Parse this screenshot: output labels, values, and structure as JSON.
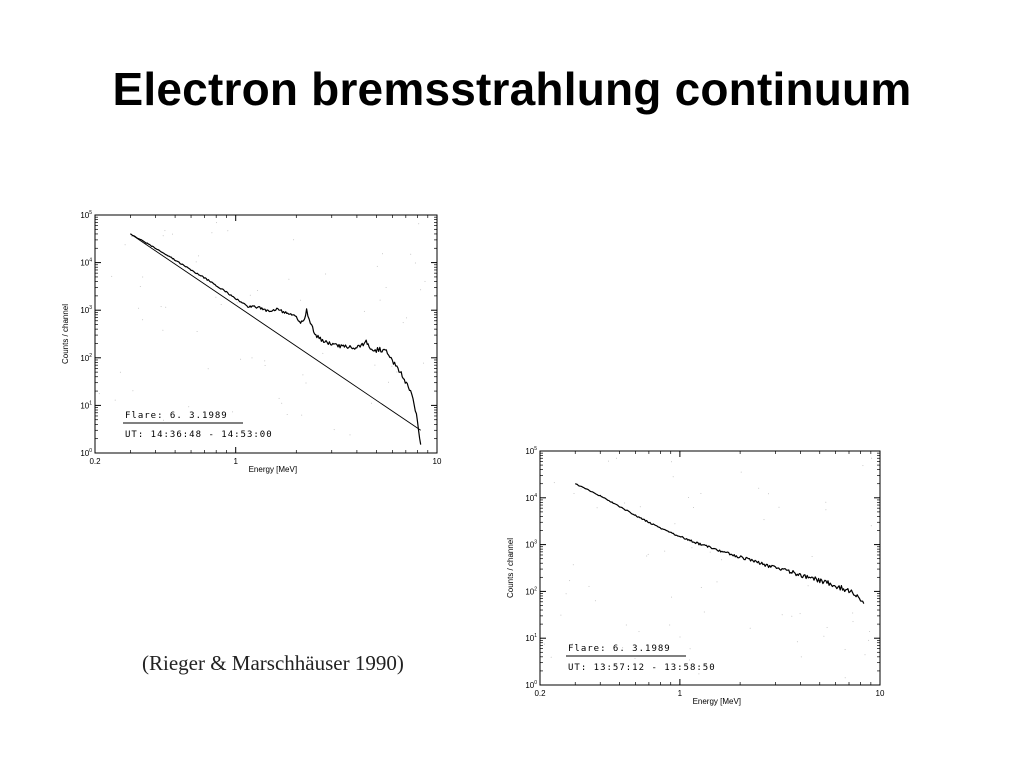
{
  "slide": {
    "title": "Electron bremsstrahlung continuum",
    "citation": "(Rieger & Marschhäuser 1990)"
  },
  "chart_data": [
    {
      "type": "line",
      "title": "",
      "xlabel": "Energy [MeV]",
      "ylabel": "Counts / channel",
      "xscale": "log",
      "yscale": "log",
      "xlim": [
        0.2,
        10
      ],
      "ylim": [
        1,
        100000
      ],
      "x_ticks": [
        "0.2",
        "1",
        "10"
      ],
      "y_ticks": [
        {
          "base": "10",
          "exp": "0",
          "value": 1
        },
        {
          "base": "10",
          "exp": "1",
          "value": 10
        },
        {
          "base": "10",
          "exp": "2",
          "value": 100
        },
        {
          "base": "10",
          "exp": "3",
          "value": 1000
        },
        {
          "base": "10",
          "exp": "4",
          "value": 10000
        },
        {
          "base": "10",
          "exp": "5",
          "value": 100000
        }
      ],
      "annotation": {
        "line1": "Flare: 6. 3.1989",
        "line2": "UT: 14:36:48 - 14:53:00"
      },
      "series": [
        {
          "style": "noisy",
          "x": [
            0.3,
            0.45,
            0.6,
            0.75,
            0.9,
            1.05,
            1.15,
            1.3,
            1.45,
            1.6,
            1.75,
            1.9,
            2.0,
            2.1,
            2.2,
            2.25,
            2.35,
            2.5,
            2.7,
            3.0,
            3.3,
            3.6,
            3.9,
            4.2,
            4.45,
            4.6,
            4.8,
            5.2,
            5.6,
            6.0,
            6.4,
            6.8,
            7.2,
            7.6,
            8.0,
            8.3
          ],
          "y": [
            40000,
            15000,
            7000,
            4000,
            2400,
            1550,
            1200,
            1150,
            950,
            1050,
            900,
            800,
            720,
            560,
            620,
            1000,
            520,
            300,
            230,
            190,
            175,
            170,
            165,
            175,
            240,
            170,
            140,
            150,
            135,
            90,
            55,
            40,
            25,
            15,
            5,
            1.5
          ]
        },
        {
          "style": "smooth",
          "x": [
            0.3,
            8.3
          ],
          "y": [
            40000,
            3
          ]
        }
      ]
    },
    {
      "type": "line",
      "title": "",
      "xlabel": "Energy [MeV]",
      "ylabel": "Counts / channel",
      "xscale": "log",
      "yscale": "log",
      "xlim": [
        0.2,
        10
      ],
      "ylim": [
        1,
        100000
      ],
      "x_ticks": [
        "0.2",
        "1",
        "10"
      ],
      "y_ticks": [
        {
          "base": "10",
          "exp": "0",
          "value": 1
        },
        {
          "base": "10",
          "exp": "1",
          "value": 10
        },
        {
          "base": "10",
          "exp": "2",
          "value": 100
        },
        {
          "base": "10",
          "exp": "3",
          "value": 1000
        },
        {
          "base": "10",
          "exp": "4",
          "value": 10000
        },
        {
          "base": "10",
          "exp": "5",
          "value": 100000
        }
      ],
      "annotation": {
        "line1": "Flare: 6. 3.1989",
        "line2": "UT: 13:57:12 - 13:58:50"
      },
      "series": [
        {
          "style": "noisy",
          "x": [
            0.3,
            0.4,
            0.5,
            0.6,
            0.7,
            0.85,
            1.0,
            1.2,
            1.5,
            1.8,
            2.2,
            2.6,
            3.0,
            3.5,
            4.0,
            4.5,
            5.0,
            5.5,
            6.0,
            6.5,
            7.0,
            7.5,
            8.0,
            8.3
          ],
          "y": [
            20000,
            11000,
            6500,
            4200,
            3000,
            2000,
            1500,
            1100,
            800,
            620,
            480,
            380,
            320,
            270,
            225,
            195,
            170,
            150,
            130,
            115,
            105,
            90,
            70,
            55
          ]
        }
      ]
    }
  ]
}
